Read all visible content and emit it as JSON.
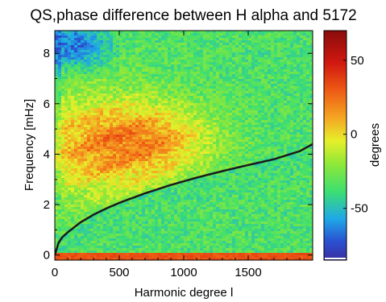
{
  "chart_data": {
    "type": "heatmap",
    "title": "QS,phase difference between H alpha and 5172",
    "xlabel": "Harmonic degree l",
    "ylabel": "Frequency [mHz]",
    "xlim": [
      0,
      2000
    ],
    "ylim": [
      -0.2,
      8.9
    ],
    "x_ticks": [
      0,
      500,
      1000,
      1500
    ],
    "x_tick_labels": [
      "0",
      "500",
      "1000",
      "1500"
    ],
    "y_ticks": [
      0,
      2,
      4,
      6,
      8
    ],
    "y_tick_labels": [
      "0",
      "2",
      "4",
      "6",
      "8"
    ],
    "colorbar": {
      "label": "degrees",
      "range": [
        -85,
        70
      ],
      "ticks": [
        50,
        0,
        -50
      ],
      "tick_labels": [
        "50",
        "0",
        "-50"
      ]
    },
    "value_regions": [
      {
        "region": "l 0-1000, nu 2-6.5 mHz, above curve",
        "value_deg": 5
      },
      {
        "region": "l 0-400, nu 7-8.8 mHz",
        "value_deg": -60
      },
      {
        "region": "below ridge curve",
        "value_deg": -35
      },
      {
        "region": "nu < 0.1 mHz",
        "value_deg": 30
      }
    ],
    "ridge_curve": {
      "name": "",
      "x": [
        0,
        30,
        60,
        100,
        200,
        300,
        400,
        500,
        700,
        900,
        1100,
        1300,
        1500,
        1700,
        1900,
        2000
      ],
      "y": [
        0,
        0.5,
        0.72,
        0.9,
        1.3,
        1.6,
        1.85,
        2.07,
        2.45,
        2.78,
        3.07,
        3.33,
        3.57,
        3.8,
        4.12,
        4.4
      ]
    }
  }
}
